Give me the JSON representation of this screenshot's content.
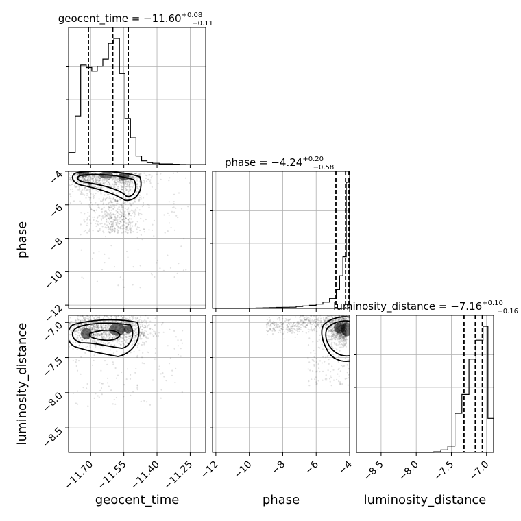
{
  "chart_data": {
    "type": "corner",
    "parameters": [
      {
        "name": "geocent_time",
        "title": "geocent_time = −11.60",
        "upper": "+0.08",
        "lower": "−0.11",
        "range": [
          -11.8,
          -11.18
        ],
        "ticks": [
          -11.7,
          -11.55,
          -11.4,
          -11.25
        ],
        "tick_labels": [
          "−11.70",
          "−11.55",
          "−11.40",
          "−11.25"
        ],
        "quantiles": [
          -11.71,
          -11.6,
          -11.53
        ],
        "hist_edges": [
          -11.8,
          -11.77,
          -11.745,
          -11.72,
          -11.695,
          -11.67,
          -11.645,
          -11.62,
          -11.595,
          -11.57,
          -11.545,
          -11.52,
          -11.495,
          -11.47,
          -11.445,
          -11.42,
          -11.39,
          -11.36,
          -11.33,
          -11.3,
          -11.27
        ],
        "hist_values": [
          0.1,
          0.4,
          0.82,
          0.8,
          0.77,
          0.81,
          0.87,
          1.0,
          1.04,
          0.75,
          0.38,
          0.22,
          0.07,
          0.03,
          0.015,
          0.01,
          0.005,
          0.005,
          0.002,
          0.0
        ]
      },
      {
        "name": "phase",
        "title": "phase = −4.24",
        "upper": "+0.20",
        "lower": "−0.58",
        "range": [
          -12.2,
          -4.0
        ],
        "ticks": [
          -12,
          -10,
          -8,
          -6,
          -4
        ],
        "tick_labels": [
          "−12",
          "−10",
          "−8",
          "−6",
          "−4"
        ],
        "quantiles": [
          -4.82,
          -4.24,
          -4.04
        ],
        "hist_edges": [
          -12.0,
          -11.6,
          -11.2,
          -10.8,
          -10.4,
          -10.0,
          -9.6,
          -9.2,
          -8.8,
          -8.4,
          -8.0,
          -7.6,
          -7.2,
          -6.8,
          -6.4,
          -6.0,
          -5.6,
          -5.2,
          -4.8,
          -4.6,
          -4.4,
          -4.2,
          -4.0
        ],
        "hist_values": [
          0.0,
          0.0,
          0.0,
          0.0,
          0.0,
          0.002,
          0.003,
          0.005,
          0.006,
          0.008,
          0.009,
          0.01,
          0.015,
          0.02,
          0.025,
          0.035,
          0.05,
          0.08,
          0.15,
          0.26,
          0.41,
          1.0
        ]
      },
      {
        "name": "luminosity_distance",
        "title": "luminosity_distance = −7.16",
        "upper": "+0.10",
        "lower": "−0.16",
        "range": [
          -8.85,
          -6.9
        ],
        "ticks": [
          -8.5,
          -8.0,
          -7.5,
          -7.0
        ],
        "tick_labels": [
          "−8.5",
          "−8.0",
          "−7.5",
          "−7.0"
        ],
        "quantiles": [
          -7.32,
          -7.16,
          -7.06
        ],
        "hist_edges": [
          -8.85,
          -8.75,
          -8.65,
          -8.55,
          -8.45,
          -8.35,
          -8.25,
          -8.15,
          -8.05,
          -7.95,
          -7.85,
          -7.75,
          -7.65,
          -7.55,
          -7.45,
          -7.35,
          -7.25,
          -7.15,
          -7.05,
          -6.98,
          -6.9
        ],
        "hist_values": [
          0.0,
          0.0,
          0.0,
          0.0,
          0.0,
          0.0,
          0.0,
          0.0,
          0.0,
          0.0,
          0.0,
          0.005,
          0.02,
          0.05,
          0.31,
          0.46,
          0.74,
          0.89,
          1.0,
          0.27
        ]
      }
    ],
    "grid": true,
    "quantile_lines": [
      0.16,
      0.5,
      0.84
    ]
  }
}
